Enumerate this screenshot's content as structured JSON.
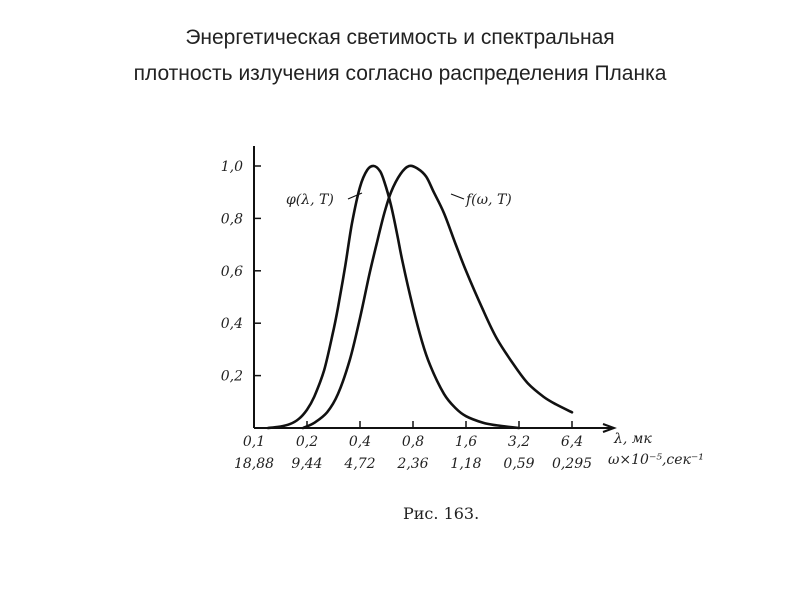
{
  "title": {
    "line1": "Энергетическая светимость и спектральная",
    "line2": "плотность излучения согласно распределения Планка"
  },
  "caption": "Рис. 163.",
  "chart_data": {
    "type": "line",
    "x_scale": "log2",
    "x_ticks": [
      0.1,
      0.2,
      0.4,
      0.8,
      1.6,
      3.2,
      6.4
    ],
    "x_tick_labels": [
      "0,1",
      "0,2",
      "0,4",
      "0,8",
      "1,6",
      "3,2",
      "6,4"
    ],
    "x_secondary_tick_labels": [
      "18,88",
      "9,44",
      "4,72",
      "2,36",
      "1,18",
      "0,59",
      "0,295"
    ],
    "xlabel": "λ, мк",
    "xlabel_secondary": "ω×10⁻⁵,сек⁻¹",
    "y_ticks": [
      0.2,
      0.4,
      0.6,
      0.8,
      1.0
    ],
    "y_tick_labels": [
      "0,2",
      "0,4",
      "0,6",
      "0,8",
      "1,0"
    ],
    "ylim": [
      0,
      1.05
    ],
    "xlim": [
      0.1,
      7.5
    ],
    "series": [
      {
        "name": "φ(λ, T)",
        "x": [
          0.12,
          0.14,
          0.16,
          0.18,
          0.2,
          0.22,
          0.25,
          0.28,
          0.3,
          0.33,
          0.36,
          0.4,
          0.44,
          0.48,
          0.52,
          0.55,
          0.6,
          0.65,
          0.7,
          0.8,
          0.9,
          1.0,
          1.2,
          1.4,
          1.6,
          2.0,
          2.4,
          3.2
        ],
        "y": [
          0.0,
          0.005,
          0.015,
          0.035,
          0.07,
          0.12,
          0.22,
          0.36,
          0.46,
          0.62,
          0.78,
          0.92,
          0.985,
          1.0,
          0.98,
          0.94,
          0.85,
          0.74,
          0.63,
          0.46,
          0.33,
          0.24,
          0.13,
          0.075,
          0.045,
          0.02,
          0.01,
          0.0
        ]
      },
      {
        "name": "f(ω, T)",
        "x": [
          0.19,
          0.22,
          0.26,
          0.3,
          0.35,
          0.4,
          0.45,
          0.5,
          0.55,
          0.6,
          0.68,
          0.76,
          0.85,
          0.95,
          1.05,
          1.2,
          1.4,
          1.6,
          2.0,
          2.4,
          3.0,
          3.6,
          4.4,
          5.2,
          6.4
        ],
        "y": [
          0.0,
          0.02,
          0.06,
          0.13,
          0.26,
          0.42,
          0.58,
          0.71,
          0.82,
          0.9,
          0.97,
          1.0,
          0.99,
          0.96,
          0.9,
          0.82,
          0.7,
          0.6,
          0.45,
          0.34,
          0.24,
          0.17,
          0.12,
          0.09,
          0.06
        ]
      }
    ]
  }
}
